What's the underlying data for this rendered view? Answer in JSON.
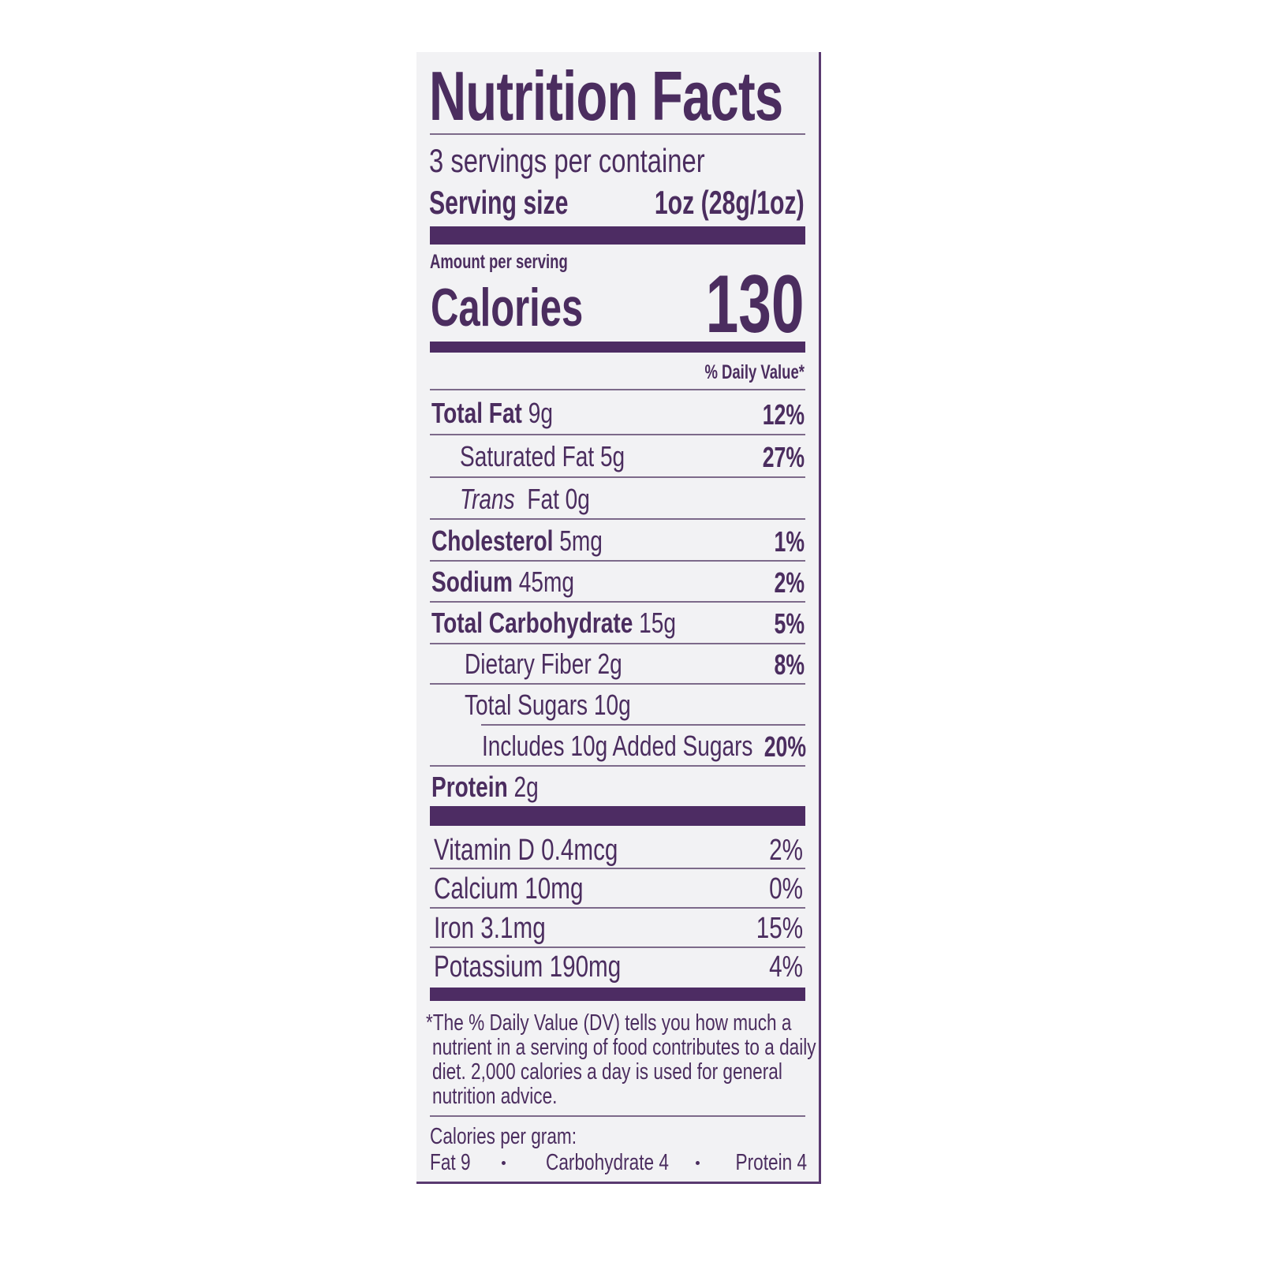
{
  "title": "Nutrition Facts",
  "servings_per_container": "3 servings per container",
  "serving_size_label": "Serving size",
  "serving_size_value": "1oz (28g/1oz)",
  "amount_per_serving": "Amount per serving",
  "calories_label": "Calories",
  "calories_value": "130",
  "daily_value_header": "% Daily Value*",
  "nutrients": [
    {
      "label": "Total Fat",
      "amount": "9g",
      "dv": "12%"
    },
    {
      "label": "Saturated Fat 5g",
      "dv": "27%"
    },
    {
      "label_italic": "Trans",
      "label": "Fat 0g"
    },
    {
      "label": "Cholesterol",
      "amount": "5mg",
      "dv": "1%"
    },
    {
      "label": "Sodium",
      "amount": "45mg",
      "dv": "2%"
    },
    {
      "label": "Total Carbohydrate",
      "amount": "15g",
      "dv": "5%"
    },
    {
      "label": "Dietary Fiber 2g",
      "dv": "8%"
    },
    {
      "label": "Total Sugars 10g"
    },
    {
      "label": "Includes 10g Added Sugars",
      "dv": "20%"
    },
    {
      "label": "Protein",
      "amount": "2g"
    }
  ],
  "vitamins": [
    {
      "label": "Vitamin D 0.4mcg",
      "dv": "2%"
    },
    {
      "label": "Calcium 10mg",
      "dv": "0%"
    },
    {
      "label": "Iron 3.1mg",
      "dv": "15%"
    },
    {
      "label": "Potassium 190mg",
      "dv": "4%"
    }
  ],
  "footnote": [
    "*The % Daily Value (DV) tells you how much a",
    "nutrient in a serving of food contributes to a daily",
    "diet. 2,000 calories a day is used for general",
    "nutrition advice."
  ],
  "calories_per_gram": {
    "label": "Calories per gram:",
    "fat": "Fat 9",
    "carbohydrate": "Carbohydrate 4",
    "protein": "Protein 4"
  },
  "colors": {
    "ink": "#4b2d5f",
    "panel": "#f2f2f4"
  }
}
